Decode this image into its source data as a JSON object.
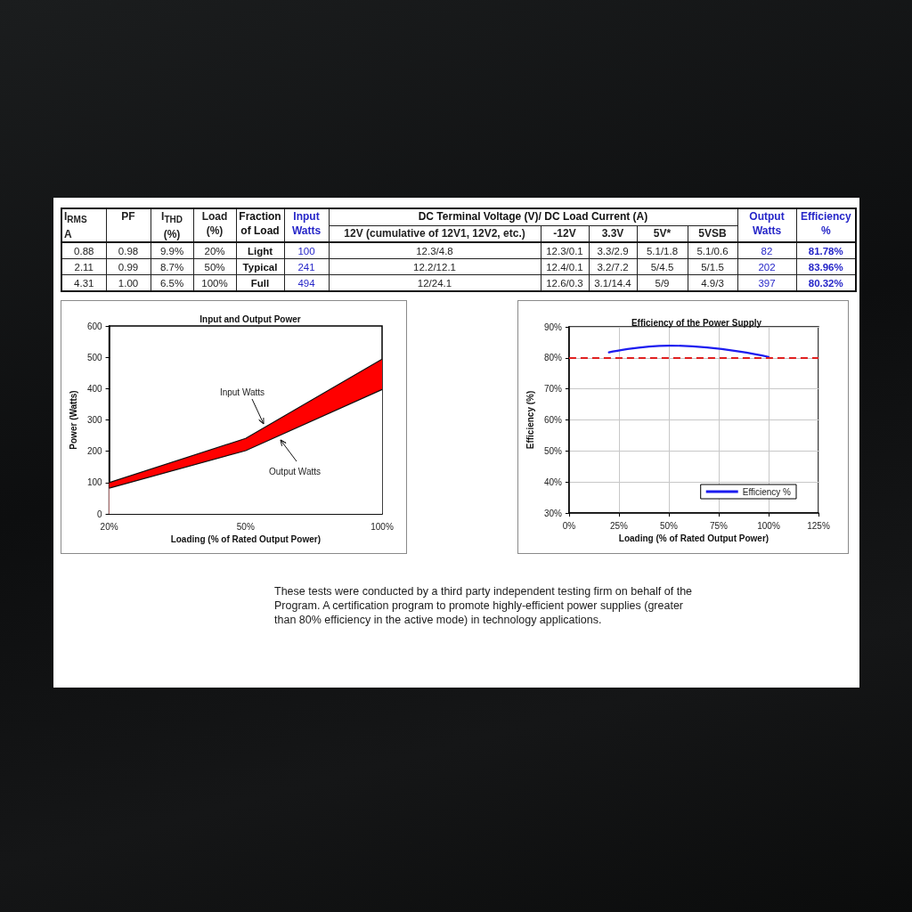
{
  "chart_data": [
    {
      "type": "other",
      "categories": [
        "I$_{RMS}$ A",
        "PF",
        "I$_{THD}$ (%)",
        "Load (%)",
        "Fraction of Load",
        "Input Watts",
        "12V (cumulative of 12V1, 12V2, etc.)",
        "-12V",
        "3.3V",
        "5V*",
        "5VSB",
        "Output Watts",
        "Efficiency %"
      ],
      "annotations": [
        "DC Terminal Voltage (V)/ DC Load Current (A)"
      ],
      "cell_labels": [
        [
          "0.88",
          "0.98",
          "9.9%",
          "20%",
          "Light",
          "100",
          "12.3/4.8",
          "12.3/0.1",
          "3.3/2.9",
          "5.1/1.8",
          "5.1/0.6",
          "82",
          "81.78%"
        ],
        [
          "2.11",
          "0.99",
          "8.7%",
          "50%",
          "Typical",
          "241",
          "12.2/12.1",
          "12.4/0.1",
          "3.2/7.2",
          "5/4.5",
          "5/1.5",
          "202",
          "83.96%"
        ],
        [
          "4.31",
          "1.00",
          "6.5%",
          "100%",
          "Full",
          "494",
          "12/24.1",
          "12.6/0.3",
          "3.1/14.4",
          "5/9",
          "4.9/3",
          "397",
          "80.32%"
        ]
      ],
      "colors": [
        "#222222",
        "#222222",
        "#222222",
        "#222222",
        "#111111",
        "#2626c8",
        "#222222",
        "#222222",
        "#222222",
        "#222222",
        "#222222",
        "#2626c8",
        "#2626c8"
      ]
    },
    {
      "type": "area",
      "title": "Input and Output Power",
      "xlabel": "Loading (% of Rated Output Power)",
      "ylabel": "Power (Watts)",
      "categories": [
        "20%",
        "50%",
        "100%"
      ],
      "series": [
        {
          "name": "Input Watts",
          "color": "#ff0000",
          "values": [
            100,
            241,
            494
          ]
        },
        {
          "name": "Output Watts",
          "color": "#ffffff",
          "values": [
            82,
            202,
            397
          ]
        }
      ],
      "ylim": [
        0,
        600
      ],
      "yticks": [
        0,
        100,
        200,
        300,
        400,
        500,
        600
      ]
    },
    {
      "type": "line",
      "title": "Efficiency of the Power Supply",
      "xlabel": "Loading (% of Rated Output Power)",
      "ylabel": "Efficiency (%)",
      "x": [
        20,
        50,
        100
      ],
      "series": [
        {
          "name": "Efficiency %",
          "color": "#1c1cf0",
          "values": [
            81.78,
            83.96,
            80.32
          ]
        }
      ],
      "xlim": [
        0,
        125
      ],
      "xticks": [
        {
          "value": 0,
          "label": "0%"
        },
        {
          "value": 25,
          "label": "25%"
        },
        {
          "value": 50,
          "label": "50%"
        },
        {
          "value": 75,
          "label": "75%"
        },
        {
          "value": 100,
          "label": "100%"
        },
        {
          "value": 125,
          "label": "125%"
        }
      ],
      "ylim": [
        30,
        90
      ],
      "yticks": [
        {
          "value": 30,
          "label": "30%"
        },
        {
          "value": 40,
          "label": "40%"
        },
        {
          "value": 50,
          "label": "50%"
        },
        {
          "value": 60,
          "label": "60%"
        },
        {
          "value": 70,
          "label": "70%"
        },
        {
          "value": 80,
          "label": "80%"
        },
        {
          "value": 90,
          "label": "90%"
        }
      ],
      "grid": true,
      "legend": "bottom right",
      "ref_lines": [
        {
          "axis": "y",
          "value": 80,
          "color": "#e02020",
          "line_style": "dashed"
        }
      ]
    },
    {
      "type": "other",
      "annotations": [
        "These tests were conducted by a third party independent testing firm on behalf of the Program. A certification program to promote highly-efficient power supplies (greater than 80% efficiency in the active mode) in technology applications."
      ]
    }
  ]
}
